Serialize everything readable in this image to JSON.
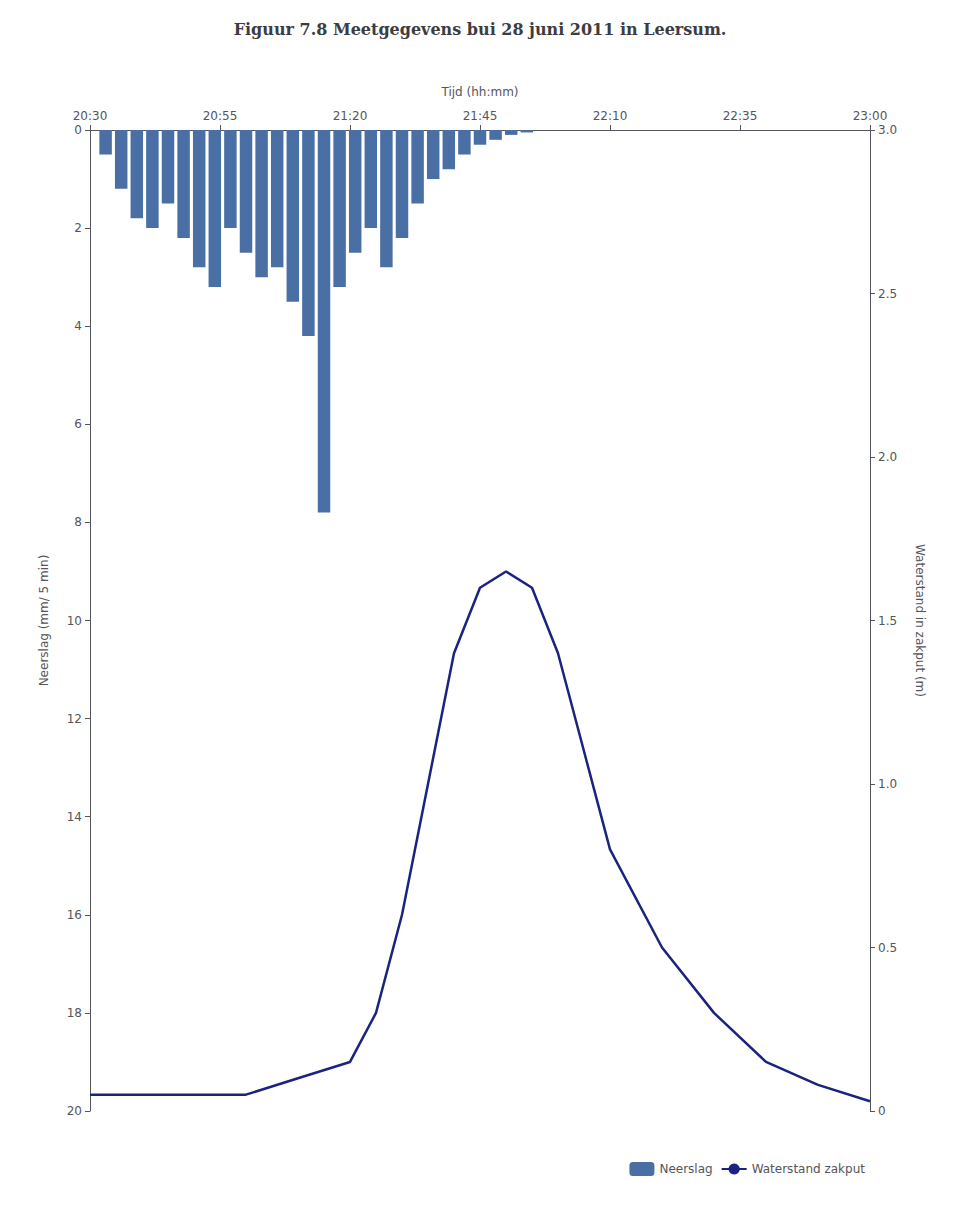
{
  "chart_data": {
    "type": "bar",
    "title": "Figuur 7.8 Meetgegevens bui 28 juni 2011 in Leersum.",
    "x_label": "Tijd (hh:mm)",
    "y_label": "Neerslag (mm/ 5 min)",
    "y2_label": "Waterstand in zakput (m)",
    "xlim": [
      0,
      150
    ],
    "xticks": [
      {
        "value": 0,
        "label": "20:30"
      },
      {
        "value": 25,
        "label": "20:55"
      },
      {
        "value": 50,
        "label": "21:20"
      },
      {
        "value": 75,
        "label": "21:45"
      },
      {
        "value": 100,
        "label": "22:10"
      },
      {
        "value": 125,
        "label": "22:35"
      },
      {
        "value": 150,
        "label": "23:00"
      }
    ],
    "ylim": [
      20,
      0
    ],
    "yticks": [
      0,
      2,
      4,
      6,
      8,
      10,
      12,
      14,
      16,
      18,
      20
    ],
    "y2lim": [
      0,
      3
    ],
    "y2ticks": [
      0,
      0.5,
      {
        "value": 1,
        "label": "1.0"
      },
      1.5,
      {
        "value": 2,
        "label": "2.0"
      },
      2.5,
      {
        "value": 3,
        "label": "3.0"
      }
    ],
    "grid": false,
    "legend": "lower right",
    "series": [
      {
        "name": "Neerslag",
        "type": "bar",
        "color": "#4a6fa5",
        "x": [
          3,
          6,
          9,
          12,
          15,
          18,
          21,
          24,
          27,
          30,
          33,
          36,
          39,
          42,
          45,
          48,
          51,
          54,
          57,
          60,
          63,
          66,
          69,
          72,
          75,
          78,
          81,
          84,
          87
        ],
        "values": [
          0.5,
          1.2,
          1.8,
          2.0,
          1.5,
          2.2,
          2.8,
          3.2,
          2.0,
          2.5,
          3.0,
          2.8,
          3.5,
          4.2,
          7.8,
          3.2,
          2.5,
          2.0,
          2.8,
          2.2,
          1.5,
          1.0,
          0.8,
          0.5,
          0.3,
          0.2,
          0.1,
          0.05,
          0.0
        ]
      },
      {
        "name": "Waterstand zakput",
        "type": "line",
        "axis": "y2",
        "color": "#1a237e",
        "x": [
          0,
          10,
          20,
          30,
          40,
          50,
          55,
          60,
          65,
          70,
          75,
          80,
          85,
          90,
          95,
          100,
          110,
          120,
          130,
          140,
          150
        ],
        "values": [
          0.05,
          0.05,
          0.05,
          0.05,
          0.1,
          0.15,
          0.3,
          0.6,
          1.0,
          1.4,
          1.6,
          1.65,
          1.6,
          1.4,
          1.1,
          0.8,
          0.5,
          0.3,
          0.15,
          0.08,
          0.03
        ]
      }
    ]
  }
}
